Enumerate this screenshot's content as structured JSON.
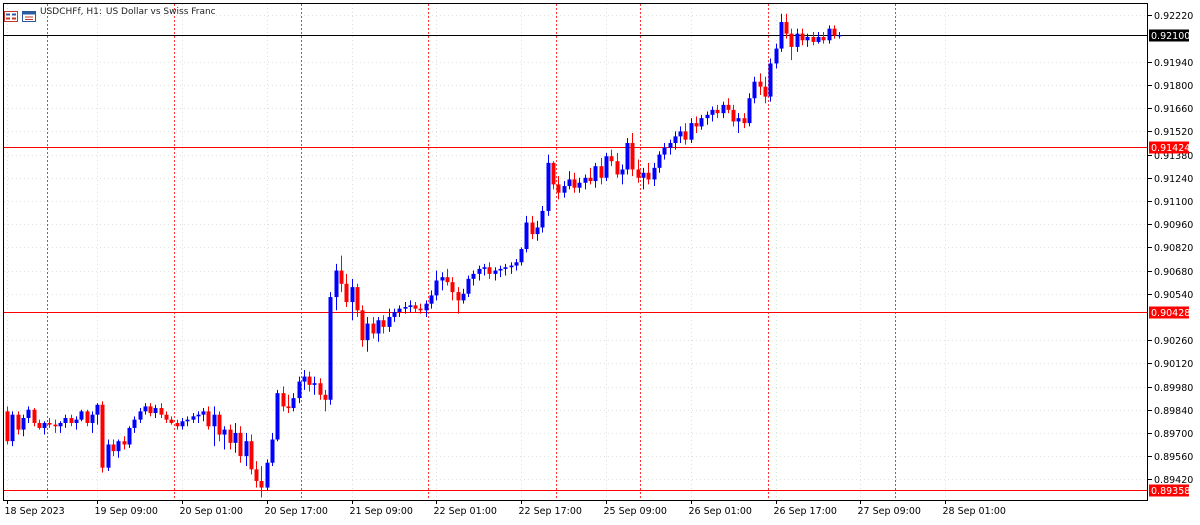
{
  "title": {
    "symbol": "USDCHFf, H1:",
    "description": "US Dollar vs Swiss Franc"
  },
  "icons": [
    "chart-menu-icon",
    "chart-window-icon"
  ],
  "colors": {
    "bull": "#0000ff",
    "bear": "#ff0000",
    "grid": "#d9d9d9",
    "axis": "#000000",
    "level": "#ff0000",
    "bid": "#000000",
    "text": "#000000"
  },
  "chart_data": {
    "type": "candlestick",
    "series": [
      "USDCHFf H1"
    ],
    "yticks": [
      0.8942,
      0.8956,
      0.897,
      0.8984,
      0.8998,
      0.9012,
      0.9026,
      0.9054,
      0.9068,
      0.9082,
      0.9096,
      0.911,
      0.9124,
      0.9138,
      0.9152,
      0.9166,
      0.918,
      0.9194,
      0.9222
    ],
    "ylim": [
      0.89295,
      0.92295
    ],
    "xtick_labels": [
      {
        "label": "18 Sep 2023",
        "bar": 0
      },
      {
        "label": "19 Sep 09:00",
        "bar": 17
      },
      {
        "label": "20 Sep 01:00",
        "bar": 33
      },
      {
        "label": "20 Sep 17:00",
        "bar": 49
      },
      {
        "label": "21 Sep 09:00",
        "bar": 65
      },
      {
        "label": "22 Sep 01:00",
        "bar": 81
      },
      {
        "label": "22 Sep 17:00",
        "bar": 97
      },
      {
        "label": "25 Sep 09:00",
        "bar": 113
      },
      {
        "label": "26 Sep 01:00",
        "bar": 129
      },
      {
        "label": "26 Sep 17:00",
        "bar": 145
      },
      {
        "label": "27 Sep 09:00",
        "bar": 161
      },
      {
        "label": "28 Sep 01:00",
        "bar": 177
      }
    ],
    "period_separator_bars": [
      7,
      31,
      55,
      79,
      103,
      119,
      143,
      167
    ],
    "levels": [
      {
        "value": 0.921,
        "label": "0.92100",
        "kind": "bid"
      },
      {
        "value": 0.91424,
        "label": "0.91424",
        "kind": "level"
      },
      {
        "value": 0.90428,
        "label": "0.90428",
        "kind": "level"
      },
      {
        "value": 0.89358,
        "label": "0.89358",
        "kind": "level"
      }
    ],
    "candles": [
      [
        0.8983,
        0.8986,
        0.8963,
        0.8965
      ],
      [
        0.8965,
        0.8983,
        0.8962,
        0.8981
      ],
      [
        0.8981,
        0.8983,
        0.8969,
        0.8972
      ],
      [
        0.8972,
        0.8981,
        0.8968,
        0.8979
      ],
      [
        0.8979,
        0.8986,
        0.8976,
        0.8984
      ],
      [
        0.8984,
        0.8985,
        0.8974,
        0.8976
      ],
      [
        0.8976,
        0.8978,
        0.8972,
        0.8973
      ],
      [
        0.8973,
        0.8977,
        0.8969,
        0.8976
      ],
      [
        0.8976,
        0.8979,
        0.8973,
        0.8975
      ],
      [
        0.8975,
        0.8978,
        0.897,
        0.8974
      ],
      [
        0.8974,
        0.8977,
        0.897,
        0.8976
      ],
      [
        0.8976,
        0.8981,
        0.8973,
        0.8979
      ],
      [
        0.8979,
        0.8981,
        0.8974,
        0.8976
      ],
      [
        0.8976,
        0.898,
        0.8972,
        0.8978
      ],
      [
        0.8978,
        0.8984,
        0.8977,
        0.8983
      ],
      [
        0.8983,
        0.8984,
        0.8974,
        0.8976
      ],
      [
        0.8976,
        0.8983,
        0.897,
        0.8981
      ],
      [
        0.8981,
        0.8988,
        0.8975,
        0.8987
      ],
      [
        0.8987,
        0.8989,
        0.8946,
        0.8949
      ],
      [
        0.8949,
        0.8966,
        0.8947,
        0.8963
      ],
      [
        0.8963,
        0.8966,
        0.8956,
        0.8959
      ],
      [
        0.8959,
        0.8966,
        0.8955,
        0.8965
      ],
      [
        0.8965,
        0.8968,
        0.896,
        0.8963
      ],
      [
        0.8963,
        0.8974,
        0.8961,
        0.8973
      ],
      [
        0.8973,
        0.898,
        0.897,
        0.8978
      ],
      [
        0.8978,
        0.8985,
        0.8976,
        0.8983
      ],
      [
        0.8983,
        0.8988,
        0.8981,
        0.8986
      ],
      [
        0.8986,
        0.8988,
        0.898,
        0.8982
      ],
      [
        0.8982,
        0.8987,
        0.8979,
        0.8985
      ],
      [
        0.8985,
        0.8988,
        0.8979,
        0.8981
      ],
      [
        0.8981,
        0.8983,
        0.8976,
        0.8978
      ],
      [
        0.8978,
        0.898,
        0.8975,
        0.8976
      ],
      [
        0.8976,
        0.8978,
        0.8972,
        0.8974
      ],
      [
        0.8974,
        0.8979,
        0.8972,
        0.8977
      ],
      [
        0.8977,
        0.898,
        0.8974,
        0.8978
      ],
      [
        0.8978,
        0.8982,
        0.8976,
        0.898
      ],
      [
        0.898,
        0.8983,
        0.8976,
        0.8981
      ],
      [
        0.8981,
        0.8985,
        0.8977,
        0.8983
      ],
      [
        0.8983,
        0.8986,
        0.8972,
        0.8974
      ],
      [
        0.8974,
        0.8986,
        0.8962,
        0.8981
      ],
      [
        0.8981,
        0.8983,
        0.8965,
        0.8969
      ],
      [
        0.8969,
        0.8974,
        0.896,
        0.8972
      ],
      [
        0.8972,
        0.8975,
        0.896,
        0.8964
      ],
      [
        0.8964,
        0.8976,
        0.8958,
        0.897
      ],
      [
        0.897,
        0.8974,
        0.8952,
        0.8956
      ],
      [
        0.8956,
        0.897,
        0.895,
        0.8965
      ],
      [
        0.8965,
        0.8969,
        0.8945,
        0.8948
      ],
      [
        0.8948,
        0.8953,
        0.8937,
        0.8941
      ],
      [
        0.8941,
        0.895,
        0.8931,
        0.8937
      ],
      [
        0.8937,
        0.8954,
        0.8935,
        0.8952
      ],
      [
        0.8952,
        0.897,
        0.895,
        0.8966
      ],
      [
        0.8966,
        0.8996,
        0.8965,
        0.8994
      ],
      [
        0.8994,
        0.8998,
        0.8983,
        0.8986
      ],
      [
        0.8986,
        0.8993,
        0.8982,
        0.8985
      ],
      [
        0.8985,
        0.8994,
        0.8983,
        0.8991
      ],
      [
        0.8991,
        0.9004,
        0.8988,
        0.9001
      ],
      [
        0.9001,
        0.9008,
        0.8996,
        0.9004
      ],
      [
        0.9004,
        0.9007,
        0.8995,
        0.8999
      ],
      [
        0.8999,
        0.9004,
        0.8993,
        0.9
      ],
      [
        0.9,
        0.9003,
        0.899,
        0.8993
      ],
      [
        0.8993,
        0.8996,
        0.8983,
        0.899
      ],
      [
        0.899,
        0.9055,
        0.8987,
        0.9052
      ],
      [
        0.9052,
        0.9072,
        0.9044,
        0.9068
      ],
      [
        0.9068,
        0.9077,
        0.9055,
        0.906
      ],
      [
        0.906,
        0.9066,
        0.9046,
        0.9049
      ],
      [
        0.9049,
        0.9063,
        0.9038,
        0.9058
      ],
      [
        0.9058,
        0.906,
        0.904,
        0.9044
      ],
      [
        0.9044,
        0.9047,
        0.9022,
        0.9026
      ],
      [
        0.9026,
        0.904,
        0.9019,
        0.9036
      ],
      [
        0.9036,
        0.904,
        0.9027,
        0.903
      ],
      [
        0.903,
        0.904,
        0.9025,
        0.9038
      ],
      [
        0.9038,
        0.9041,
        0.903,
        0.9034
      ],
      [
        0.9034,
        0.9045,
        0.9031,
        0.904
      ],
      [
        0.904,
        0.9045,
        0.9037,
        0.9043
      ],
      [
        0.9043,
        0.9047,
        0.904,
        0.9045
      ],
      [
        0.9045,
        0.9049,
        0.9042,
        0.9046
      ],
      [
        0.9046,
        0.905,
        0.9043,
        0.9047
      ],
      [
        0.9047,
        0.9049,
        0.9043,
        0.9045
      ],
      [
        0.9045,
        0.9048,
        0.9042,
        0.9044
      ],
      [
        0.9044,
        0.905,
        0.904,
        0.9048
      ],
      [
        0.9048,
        0.9056,
        0.9045,
        0.9053
      ],
      [
        0.9053,
        0.9068,
        0.905,
        0.9062
      ],
      [
        0.9062,
        0.9067,
        0.9056,
        0.9064
      ],
      [
        0.9064,
        0.9069,
        0.9059,
        0.9061
      ],
      [
        0.9061,
        0.9064,
        0.905,
        0.9055
      ],
      [
        0.9055,
        0.9058,
        0.9042,
        0.905
      ],
      [
        0.905,
        0.9057,
        0.9048,
        0.9054
      ],
      [
        0.9054,
        0.9065,
        0.9052,
        0.9063
      ],
      [
        0.9063,
        0.9068,
        0.9059,
        0.9066
      ],
      [
        0.9066,
        0.9071,
        0.9062,
        0.9069
      ],
      [
        0.9069,
        0.9072,
        0.9065,
        0.907
      ],
      [
        0.907,
        0.9073,
        0.9063,
        0.9066
      ],
      [
        0.9066,
        0.907,
        0.9062,
        0.9068
      ],
      [
        0.9068,
        0.9071,
        0.9064,
        0.9069
      ],
      [
        0.9069,
        0.9072,
        0.9065,
        0.907
      ],
      [
        0.907,
        0.9073,
        0.9066,
        0.9071
      ],
      [
        0.9071,
        0.9075,
        0.9068,
        0.9073
      ],
      [
        0.9073,
        0.9082,
        0.9071,
        0.9081
      ],
      [
        0.9081,
        0.9101,
        0.9079,
        0.9097
      ],
      [
        0.9097,
        0.9101,
        0.9087,
        0.909
      ],
      [
        0.909,
        0.9098,
        0.9086,
        0.9094
      ],
      [
        0.9094,
        0.9107,
        0.9091,
        0.9104
      ],
      [
        0.9104,
        0.9138,
        0.9101,
        0.9133
      ],
      [
        0.9133,
        0.9134,
        0.9117,
        0.912
      ],
      [
        0.912,
        0.9125,
        0.9111,
        0.9115
      ],
      [
        0.9115,
        0.9122,
        0.9112,
        0.9119
      ],
      [
        0.9119,
        0.9128,
        0.9117,
        0.9123
      ],
      [
        0.9123,
        0.9127,
        0.9115,
        0.9118
      ],
      [
        0.9118,
        0.9124,
        0.9115,
        0.9121
      ],
      [
        0.9121,
        0.9126,
        0.9117,
        0.9124
      ],
      [
        0.9124,
        0.913,
        0.912,
        0.9122
      ],
      [
        0.9122,
        0.9133,
        0.9118,
        0.9131
      ],
      [
        0.9131,
        0.9136,
        0.912,
        0.9124
      ],
      [
        0.9124,
        0.9139,
        0.9122,
        0.9137
      ],
      [
        0.9137,
        0.9141,
        0.9131,
        0.9134
      ],
      [
        0.9134,
        0.9139,
        0.9124,
        0.9126
      ],
      [
        0.9126,
        0.9132,
        0.912,
        0.9129
      ],
      [
        0.9129,
        0.9148,
        0.9126,
        0.9145
      ],
      [
        0.9145,
        0.9151,
        0.9125,
        0.9129
      ],
      [
        0.9129,
        0.9135,
        0.9121,
        0.9124
      ],
      [
        0.9124,
        0.913,
        0.9117,
        0.9127
      ],
      [
        0.9127,
        0.9133,
        0.912,
        0.9123
      ],
      [
        0.9123,
        0.9133,
        0.9119,
        0.913
      ],
      [
        0.913,
        0.914,
        0.9127,
        0.9138
      ],
      [
        0.9138,
        0.9145,
        0.9135,
        0.9142
      ],
      [
        0.9142,
        0.9147,
        0.9138,
        0.9145
      ],
      [
        0.9145,
        0.9152,
        0.9141,
        0.9149
      ],
      [
        0.9149,
        0.9155,
        0.9145,
        0.9152
      ],
      [
        0.9152,
        0.9157,
        0.9144,
        0.9147
      ],
      [
        0.9147,
        0.916,
        0.9145,
        0.9157
      ],
      [
        0.9157,
        0.9161,
        0.9151,
        0.9155
      ],
      [
        0.9155,
        0.9162,
        0.9153,
        0.916
      ],
      [
        0.916,
        0.9164,
        0.9156,
        0.9162
      ],
      [
        0.9162,
        0.9167,
        0.9158,
        0.9165
      ],
      [
        0.9165,
        0.9168,
        0.916,
        0.9163
      ],
      [
        0.9163,
        0.917,
        0.916,
        0.9168
      ],
      [
        0.9168,
        0.9172,
        0.9163,
        0.9165
      ],
      [
        0.9165,
        0.9168,
        0.9155,
        0.9158
      ],
      [
        0.9158,
        0.9163,
        0.9151,
        0.916
      ],
      [
        0.916,
        0.9163,
        0.9154,
        0.9157
      ],
      [
        0.9157,
        0.9175,
        0.9155,
        0.9172
      ],
      [
        0.9172,
        0.9185,
        0.9169,
        0.9182
      ],
      [
        0.9182,
        0.9187,
        0.9174,
        0.9179
      ],
      [
        0.9179,
        0.9185,
        0.9169,
        0.9173
      ],
      [
        0.9173,
        0.9196,
        0.917,
        0.9193
      ],
      [
        0.9193,
        0.9205,
        0.919,
        0.9202
      ],
      [
        0.9202,
        0.9223,
        0.92,
        0.9218
      ],
      [
        0.9218,
        0.9223,
        0.9208,
        0.9211
      ],
      [
        0.9211,
        0.9214,
        0.9195,
        0.9203
      ],
      [
        0.9203,
        0.9214,
        0.92,
        0.9211
      ],
      [
        0.9211,
        0.9214,
        0.9204,
        0.9207
      ],
      [
        0.9207,
        0.9211,
        0.9203,
        0.9209
      ],
      [
        0.9209,
        0.9212,
        0.9204,
        0.9206
      ],
      [
        0.9206,
        0.9212,
        0.9205,
        0.9209
      ],
      [
        0.9209,
        0.9212,
        0.9205,
        0.9207
      ],
      [
        0.9207,
        0.9216,
        0.9205,
        0.9214
      ],
      [
        0.9214,
        0.9216,
        0.9208,
        0.921
      ],
      [
        0.921,
        0.9212,
        0.9208,
        0.921
      ]
    ]
  }
}
